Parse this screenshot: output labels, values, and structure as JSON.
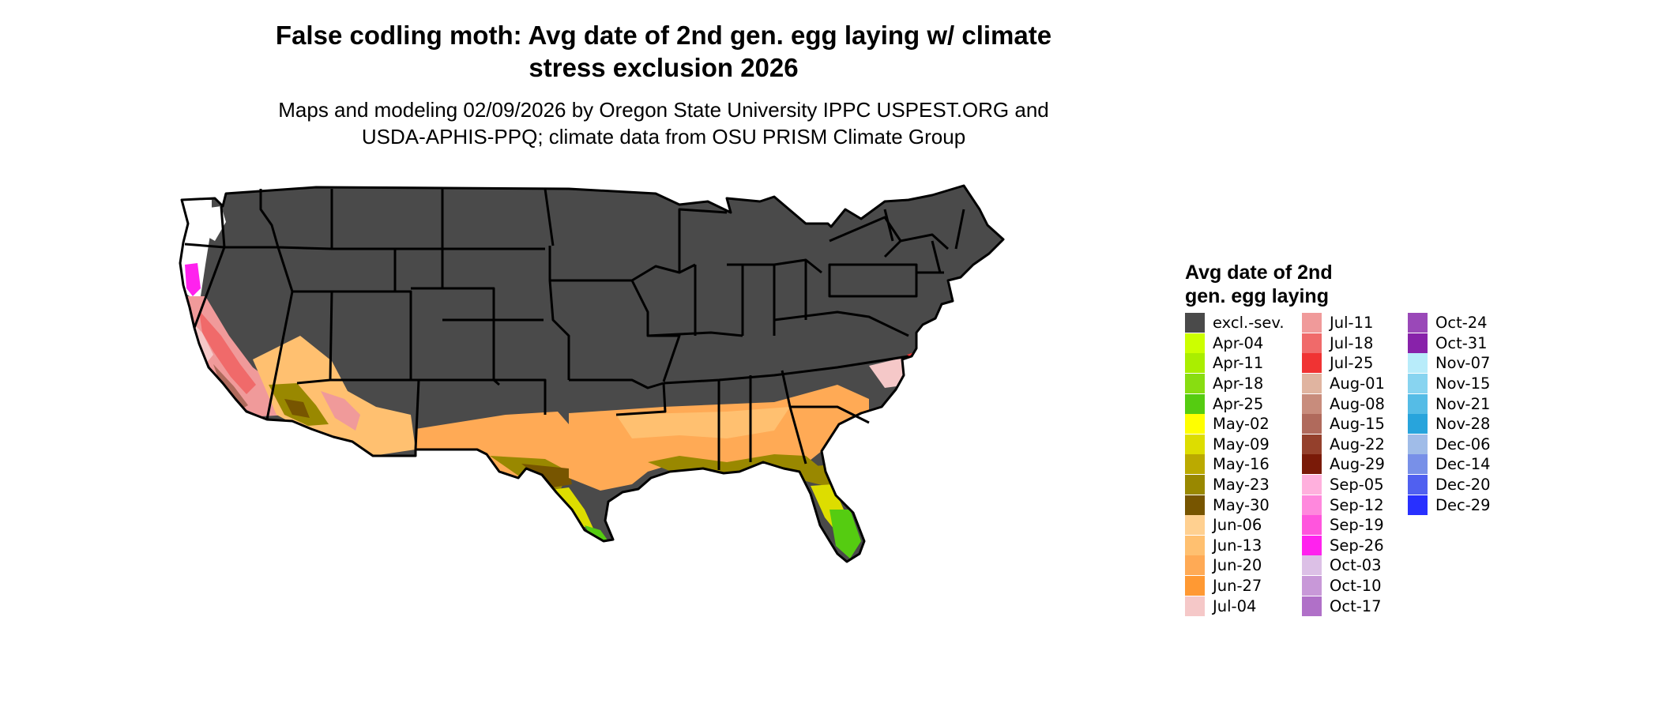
{
  "title_line1": "False codling moth: Avg date of 2nd gen. egg laying w/ climate",
  "title_line2": "stress exclusion 2026",
  "subtitle_line1": "Maps and modeling 02/09/2026 by Oregon State University IPPC USPEST.ORG and",
  "subtitle_line2": "USDA-APHIS-PPQ; climate data from OSU PRISM Climate Group",
  "legend": {
    "title_line1": "Avg date of 2nd",
    "title_line2": "gen. egg laying",
    "items": [
      {
        "label": "excl.-sev.",
        "color": "#4a4a4a"
      },
      {
        "label": "Apr-04",
        "color": "#ccff00"
      },
      {
        "label": "Apr-11",
        "color": "#aaee00"
      },
      {
        "label": "Apr-18",
        "color": "#88dd11"
      },
      {
        "label": "Apr-25",
        "color": "#55cc11"
      },
      {
        "label": "May-02",
        "color": "#ffff00"
      },
      {
        "label": "May-09",
        "color": "#dddd00"
      },
      {
        "label": "May-16",
        "color": "#bbaa00"
      },
      {
        "label": "May-23",
        "color": "#998800"
      },
      {
        "label": "May-30",
        "color": "#775500"
      },
      {
        "label": "Jun-06",
        "color": "#ffd090"
      },
      {
        "label": "Jun-13",
        "color": "#ffc070"
      },
      {
        "label": "Jun-20",
        "color": "#ffaa55"
      },
      {
        "label": "Jun-27",
        "color": "#ff9933"
      },
      {
        "label": "Jul-04",
        "color": "#f5c8c8"
      },
      {
        "label": "Jul-11",
        "color": "#f09a9a"
      },
      {
        "label": "Jul-18",
        "color": "#f06a6a"
      },
      {
        "label": "Jul-25",
        "color": "#f03333"
      },
      {
        "label": "Aug-01",
        "color": "#e0b4a0"
      },
      {
        "label": "Aug-08",
        "color": "#c88c7c"
      },
      {
        "label": "Aug-15",
        "color": "#b06a5c"
      },
      {
        "label": "Aug-22",
        "color": "#94402c"
      },
      {
        "label": "Aug-29",
        "color": "#7a1a08"
      },
      {
        "label": "Sep-05",
        "color": "#ffb0dd"
      },
      {
        "label": "Sep-12",
        "color": "#ff88dd"
      },
      {
        "label": "Sep-19",
        "color": "#ff55dd"
      },
      {
        "label": "Sep-26",
        "color": "#ff22ee"
      },
      {
        "label": "Oct-03",
        "color": "#dcc0e6"
      },
      {
        "label": "Oct-10",
        "color": "#c898d8"
      },
      {
        "label": "Oct-17",
        "color": "#b070c8"
      },
      {
        "label": "Oct-24",
        "color": "#9a48b8"
      },
      {
        "label": "Oct-31",
        "color": "#8822aa"
      },
      {
        "label": "Nov-07",
        "color": "#b8ecfa"
      },
      {
        "label": "Nov-15",
        "color": "#88d4f0"
      },
      {
        "label": "Nov-21",
        "color": "#55bce6"
      },
      {
        "label": "Nov-28",
        "color": "#28a4dc"
      },
      {
        "label": "Dec-06",
        "color": "#a0bce8"
      },
      {
        "label": "Dec-14",
        "color": "#7890e8"
      },
      {
        "label": "Dec-20",
        "color": "#5060f0"
      },
      {
        "label": "Dec-29",
        "color": "#2830ff"
      }
    ]
  },
  "colors": {
    "excluded_land": "#4a4a4a",
    "state_border": "#000000",
    "background": "#ffffff"
  }
}
